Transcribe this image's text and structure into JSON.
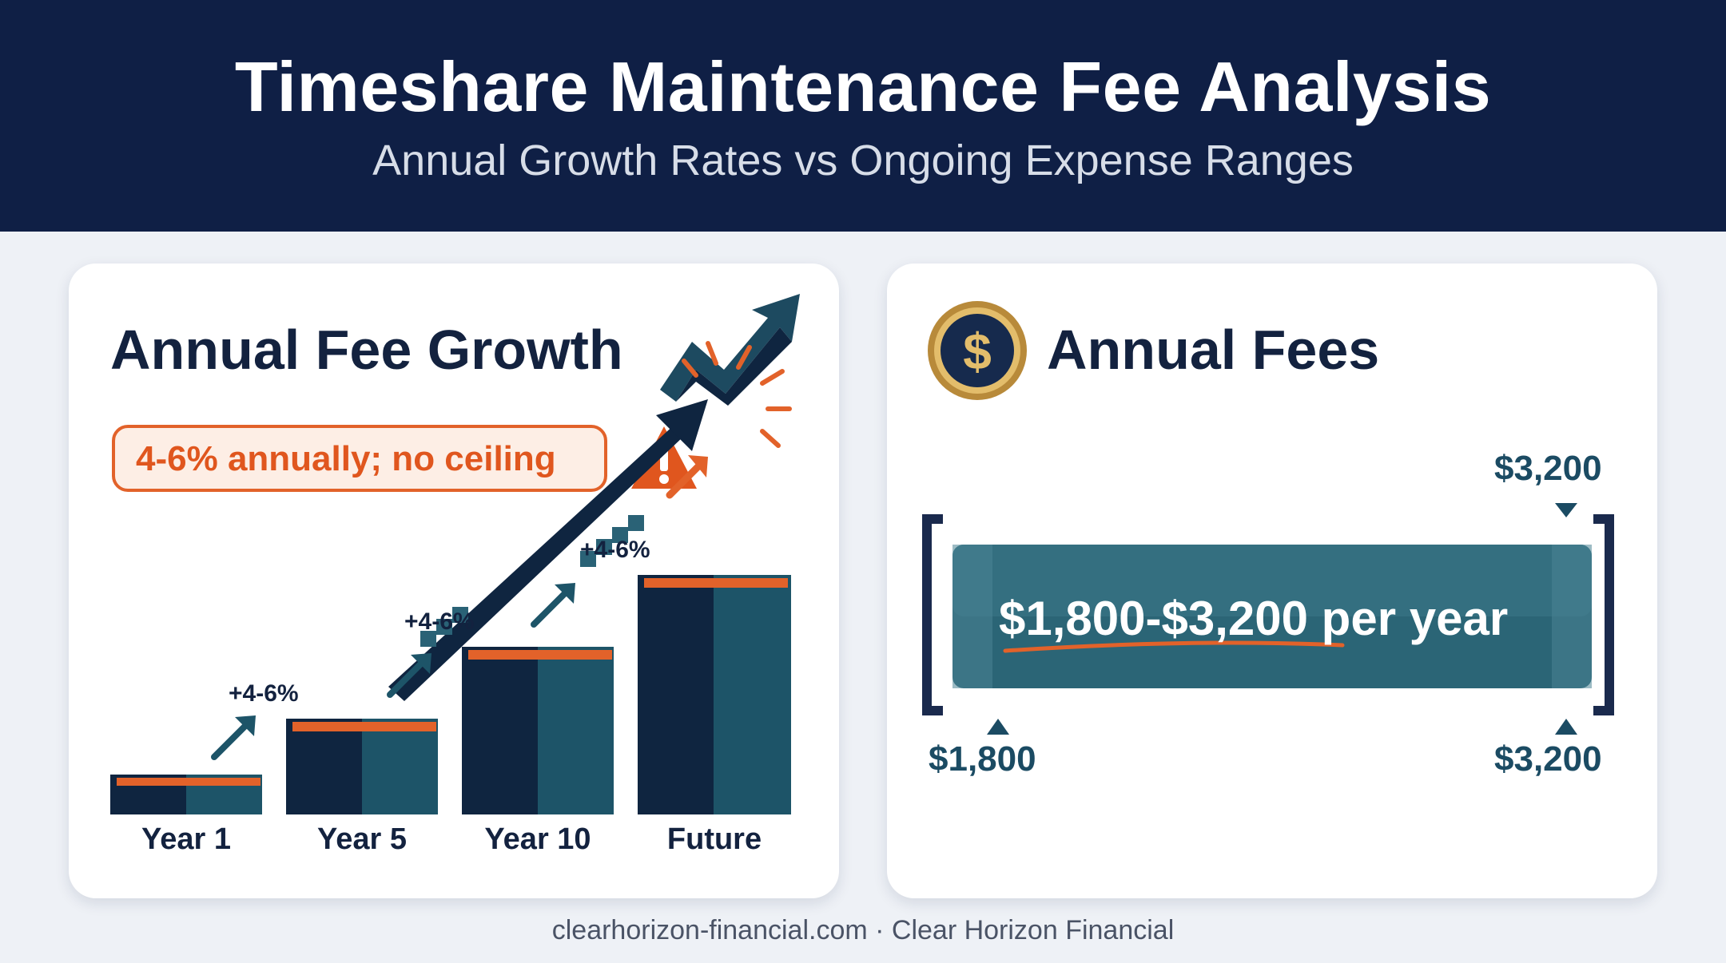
{
  "header": {
    "title": "Timeshare Maintenance Fee Analysis",
    "subtitle": "Annual Growth Rates vs Ongoing Expense Ranges"
  },
  "growth_panel": {
    "title": "Annual Fee Growth",
    "callout": "4-6% annually; no ceiling",
    "step_labels": [
      "+4-6%",
      "+4-6%",
      "+4-6%"
    ],
    "years": [
      "Year 1",
      "Year 5",
      "Year 10",
      "Future"
    ],
    "icons": [
      "trend-up-icon",
      "warning-icon",
      "arrow-up-right-icon"
    ]
  },
  "fees_panel": {
    "title": "Annual Fees",
    "range_text": "$1,800-$3,200 per year",
    "top_marker": "$3,200",
    "min_label": "$1,800",
    "max_label": "$3,200",
    "icons": [
      "dollar-coin-icon"
    ]
  },
  "footer": {
    "text": "clearhorizon-financial.com · Clear Horizon Financial"
  },
  "colors": {
    "header_bg": "#0f1f45",
    "accent_orange": "#e2622a",
    "navy": "#13223f",
    "teal": "#1b4b63"
  }
}
